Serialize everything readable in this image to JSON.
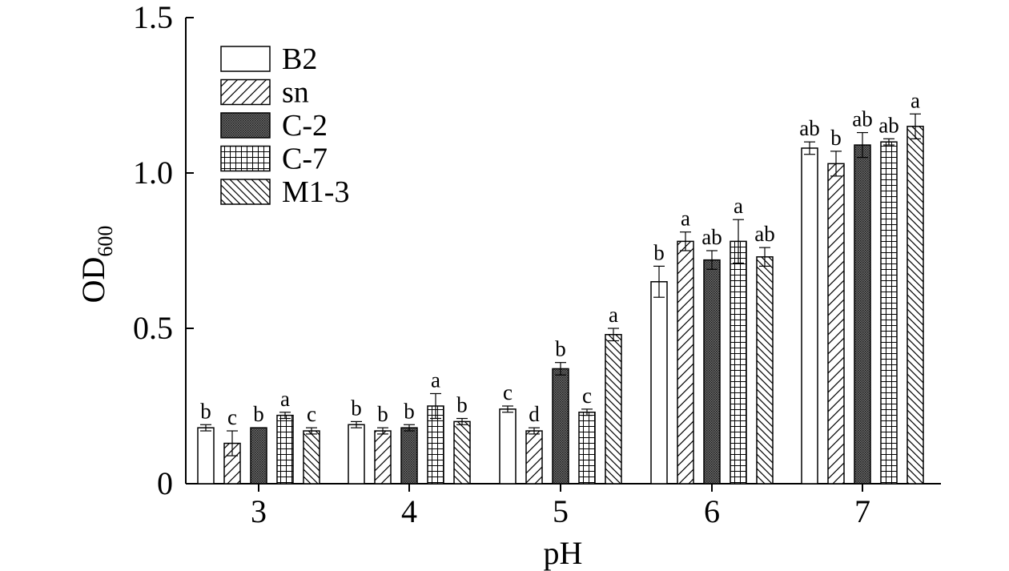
{
  "chart_data": {
    "type": "bar",
    "xlabel": "pH",
    "ylabel": "OD",
    "ylabel_sub": "600",
    "ylim": [
      0,
      1.5
    ],
    "yticks": [
      0,
      0.5,
      1.0,
      1.5
    ],
    "ytick_labels": [
      "0",
      "0.5",
      "1.0",
      "1.5"
    ],
    "categories": [
      "3",
      "4",
      "5",
      "6",
      "7"
    ],
    "legend_position": "top-left",
    "series": [
      {
        "name": "B2",
        "pattern": "white",
        "values": [
          0.18,
          0.19,
          0.24,
          0.65,
          1.08
        ],
        "errors": [
          0.01,
          0.01,
          0.01,
          0.05,
          0.02
        ],
        "letters": [
          "b",
          "b",
          "c",
          "b",
          "ab"
        ]
      },
      {
        "name": "sn",
        "pattern": "diag-up",
        "values": [
          0.13,
          0.17,
          0.17,
          0.78,
          1.03
        ],
        "errors": [
          0.04,
          0.01,
          0.01,
          0.03,
          0.04
        ],
        "letters": [
          "c",
          "b",
          "d",
          "a",
          "b"
        ]
      },
      {
        "name": "C-2",
        "pattern": "dots",
        "values": [
          0.18,
          0.18,
          0.37,
          0.72,
          1.09
        ],
        "errors": [
          0.0,
          0.01,
          0.02,
          0.03,
          0.04
        ],
        "letters": [
          "b",
          "b",
          "b",
          "ab",
          "ab"
        ]
      },
      {
        "name": "C-7",
        "pattern": "grid",
        "values": [
          0.22,
          0.25,
          0.23,
          0.78,
          1.1
        ],
        "errors": [
          0.01,
          0.04,
          0.01,
          0.07,
          0.01
        ],
        "letters": [
          "a",
          "a",
          "c",
          "a",
          "ab"
        ]
      },
      {
        "name": "M1-3",
        "pattern": "diag-down",
        "values": [
          0.17,
          0.2,
          0.48,
          0.73,
          1.15
        ],
        "errors": [
          0.01,
          0.01,
          0.02,
          0.03,
          0.04
        ],
        "letters": [
          "c",
          "b",
          "a",
          "ab",
          "a"
        ]
      }
    ]
  }
}
